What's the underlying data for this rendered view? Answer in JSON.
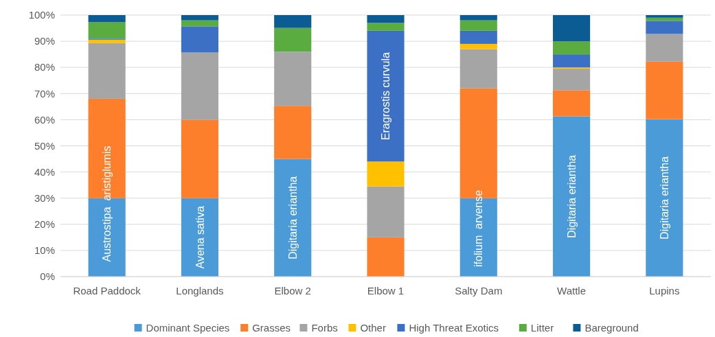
{
  "chart_data": {
    "type": "bar",
    "stacked": true,
    "categories": [
      "Road Paddock",
      "Longlands",
      "Elbow 2",
      "Elbow 1",
      "Salty Dam",
      "Wattle",
      "Lupins"
    ],
    "series": [
      {
        "name": "Dominant Species",
        "color": "#4a9bd7",
        "values": [
          30,
          30,
          45,
          0,
          30,
          61.3,
          60.2
        ]
      },
      {
        "name": "Grasses",
        "color": "#fd7e2b",
        "values": [
          38,
          30,
          20.3,
          15,
          42,
          10,
          22
        ]
      },
      {
        "name": "Forbs",
        "color": "#a5a5a5",
        "values": [
          21.3,
          25.7,
          20.7,
          19.5,
          15,
          8.2,
          10.6
        ]
      },
      {
        "name": "Other",
        "color": "#ffc000",
        "values": [
          1.3,
          0,
          0,
          9.5,
          2,
          0.5,
          0
        ]
      },
      {
        "name": "High Threat Exotics",
        "color": "#3b70c4",
        "values": [
          0.4,
          10,
          0,
          50,
          5,
          5,
          5
        ]
      },
      {
        "name": "Litter",
        "color": "#5aac41",
        "values": [
          6.3,
          2.3,
          9.1,
          3,
          4,
          5,
          1.2
        ]
      },
      {
        "name": "Bareground",
        "color": "#0b5c92",
        "values": [
          2.7,
          2,
          4.9,
          3,
          2,
          10,
          1
        ]
      }
    ],
    "ylim": [
      0,
      100
    ],
    "yticks": [
      {
        "value": 0,
        "label": "0%"
      },
      {
        "value": 10,
        "label": "10%"
      },
      {
        "value": 20,
        "label": "20%"
      },
      {
        "value": 30,
        "label": "30%"
      },
      {
        "value": 40,
        "label": "40%"
      },
      {
        "value": 50,
        "label": "50%"
      },
      {
        "value": 60,
        "label": "60%"
      },
      {
        "value": 70,
        "label": "70%"
      },
      {
        "value": 80,
        "label": "80%"
      },
      {
        "value": 90,
        "label": "90%"
      },
      {
        "value": 100,
        "label": "100%"
      }
    ],
    "grid": "y",
    "legend": "bottom",
    "annotations": [
      "Austrostipa  aristiglumis",
      "Avena sativa",
      "Digitaria eriantha",
      "Eragrostis curvula",
      "ifolium  arvense",
      "Digitaria eriantha",
      "Digitaria eriantha"
    ]
  }
}
